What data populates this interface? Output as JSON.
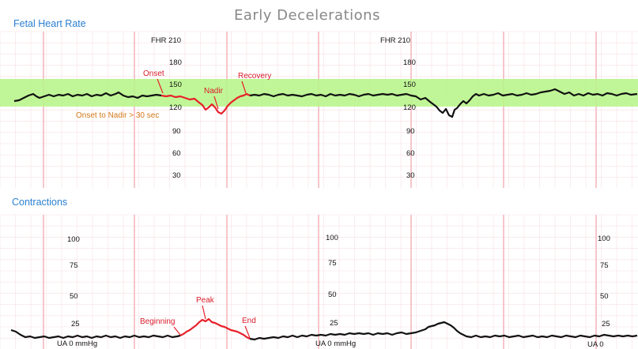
{
  "title": "Early Decelerations",
  "fhr_panel": {
    "label": "Fetal Heart Rate",
    "scale_header": "FHR 210",
    "scale_labels": [
      "180",
      "150",
      "120",
      "90",
      "60",
      "30"
    ],
    "normal_band_color": "#b9f58c"
  },
  "fhr_annotations": {
    "onset": "Onset",
    "nadir": "Nadir",
    "recovery": "Recovery",
    "onset_to_nadir": "Onset to Nadir > 30 sec"
  },
  "contractions_panel": {
    "label": "Contractions",
    "scale_labels": [
      "100",
      "75",
      "50",
      "25"
    ],
    "baseline_labels": [
      "UA 0 mmHg",
      "UA 0 mmHg",
      "UA 0"
    ]
  },
  "contraction_annotations": {
    "beginning": "Beginning",
    "peak": "Peak",
    "end": "End"
  },
  "colors": {
    "trace": "#111111",
    "highlight": "#e8202a",
    "label_blue": "#2a7fd0",
    "grid_major": "#f4b8c0",
    "grid_minor": "#f8dfe3"
  }
}
